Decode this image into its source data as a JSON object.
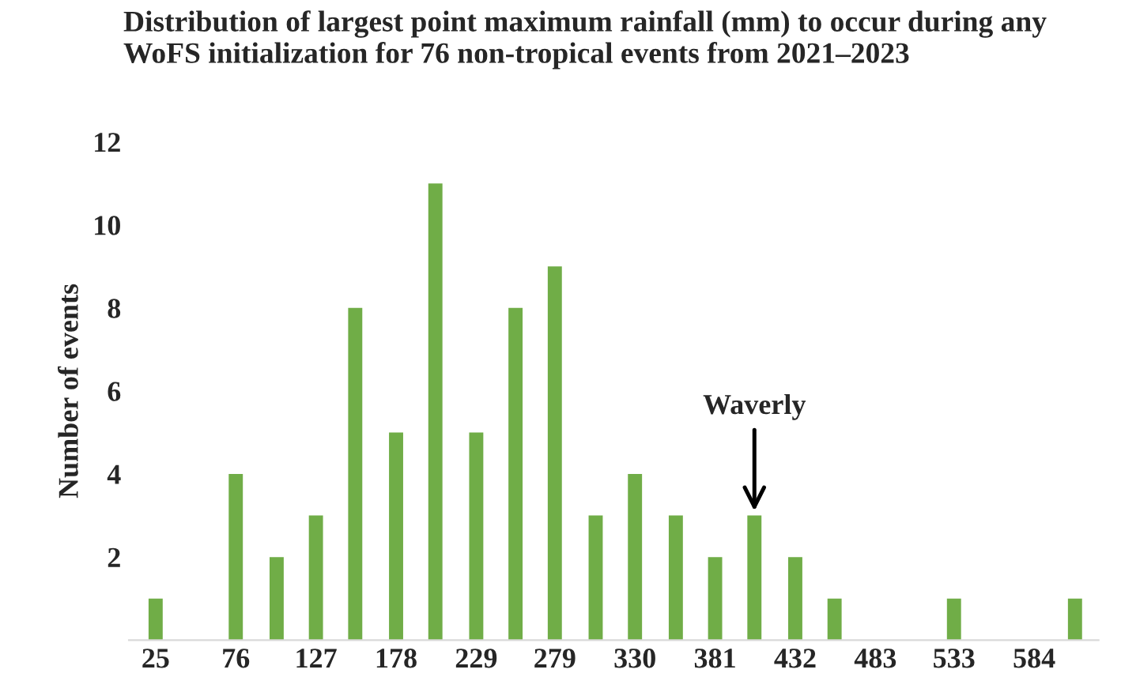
{
  "chart_data": {
    "type": "bar",
    "title": "Distribution of largest point maximum rainfall (mm) to occur during any WoFS initialization for 76 non-tropical events from 2021–2023",
    "ylabel": "Number of events",
    "x": [
      25,
      51,
      76,
      102,
      127,
      152,
      178,
      203,
      229,
      254,
      279,
      305,
      330,
      356,
      381,
      406,
      432,
      457,
      483,
      508,
      533,
      559,
      584,
      610
    ],
    "values": [
      1,
      0,
      4,
      2,
      3,
      8,
      5,
      11,
      5,
      8,
      9,
      3,
      4,
      3,
      2,
      3,
      2,
      1,
      0,
      0,
      1,
      0,
      0,
      1
    ],
    "color": "#70ad47",
    "xticks": [
      25,
      76,
      127,
      178,
      229,
      279,
      330,
      381,
      432,
      483,
      533,
      584
    ],
    "xlim": [
      8,
      625
    ],
    "ylim": [
      0,
      12
    ],
    "yticks": [
      2,
      4,
      6,
      8,
      10,
      12
    ],
    "grid": false,
    "legend": false,
    "annotations": [
      {
        "text": "Waverly",
        "x": 406,
        "y": 3
      }
    ]
  }
}
